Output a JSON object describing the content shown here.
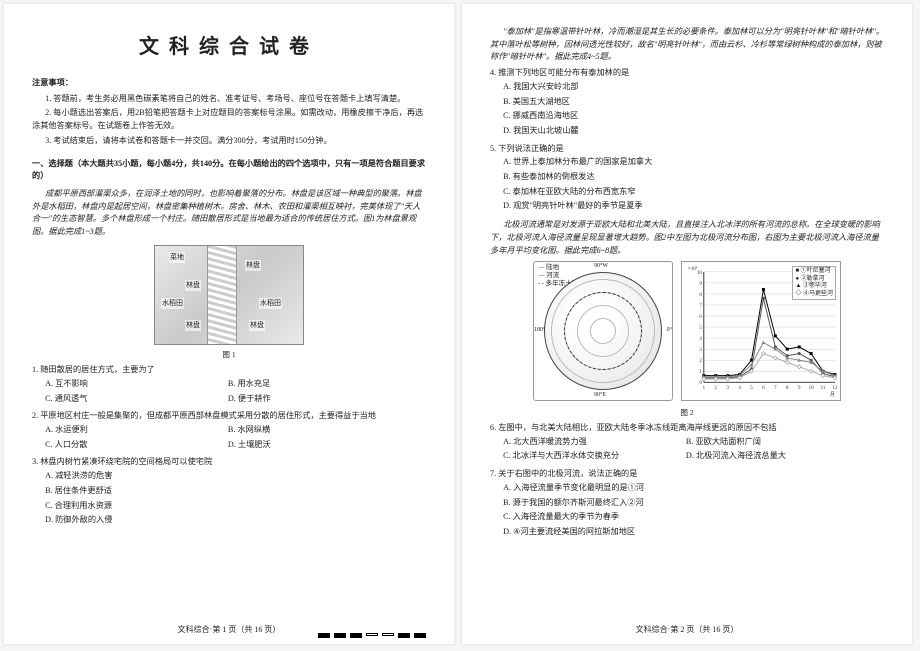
{
  "title": "文科综合试卷",
  "notice_head": "注意事项：",
  "notices": [
    "1. 答题前，考生务必用黑色碳素笔将自己的姓名、准考证号、考场号、座位号在答题卡上填写清楚。",
    "2. 每小题选出答案后，用2B铅笔把答题卡上对应题目的答案标号涂黑。如需改动，用橡皮擦干净后，再选涂其他答案标号。在试题卷上作答无效。",
    "3. 考试结束后，请将本试卷和答题卡一并交回。满分300分，考试用时150分钟。"
  ],
  "partA_head": "一、选择题（本大题共35小题，每小题4分，共140分。在每小题给出的四个选项中，只有一项是符合题目要求的）",
  "passage1": "成都平原西部灌渠众多，在润泽土地的同时，也影响着聚落的分布。林盘是该区域一种典型的聚落。林盘外是水稻田，林盘内是起居空间，林盘密集种植树木。房舍、林木、农田和灌渠相互映衬，完美体现了\"天人合一\"的生态智慧。多个林盘形成一个村庄。随田散居形式是当地最为适合的传统居住方式。图1为林盘景观图。据此完成1~3题。",
  "fig1_caption": "图 1",
  "fig1_labels": {
    "a": "菜地",
    "b": "林盘",
    "c": "林盘",
    "d": "水稻田",
    "e": "水稻田",
    "f": "林盘",
    "g": "林盘"
  },
  "q1": {
    "stem": "1. 随田散居的居住方式，主要为了",
    "A": "A. 互不影响",
    "B": "B. 用水充足",
    "C": "C. 通风透气",
    "D": "D. 便于耕作"
  },
  "q2": {
    "stem": "2. 平原地区村庄一般是集聚的，但成都平原西部林盘模式采用分散的居住形式，主要得益于当地",
    "A": "A. 水运便利",
    "B": "B. 水网纵横",
    "C": "C. 人口分散",
    "D": "D. 土壤肥沃"
  },
  "q3": {
    "stem": "3. 林盘内树竹紧凑环绕宅院的空间格局可以使宅院",
    "A": "A. 减轻洪涝的危害",
    "B": "B. 居住条件更舒适",
    "C": "C. 合理利用水资源",
    "D": "D. 防御外敌的入侵"
  },
  "footer1": "文科综合·第 1 页（共 16 页）",
  "passage2a": "\"泰加林\"是指寒温带针叶林，冷而潮湿是其生长的必要条件。泰加林可以分为\"明亮针叶林\"和\"暗针叶林\"。其中落叶松等树种，因林间透光性较好，故名\"明亮针叶林\"，而由云杉、冷杉等常绿树种构成的泰加林，则被称作\"暗针叶林\"。据此完成4~5题。",
  "q4": {
    "stem": "4. 推测下列地区可能分布有泰加林的是",
    "A": "A. 我国大兴安岭北部",
    "B": "B. 美国五大湖地区",
    "C": "C. 挪威西南沿海地区",
    "D": "D. 我国天山北坡山麓"
  },
  "q5": {
    "stem": "5. 下列说法正确的是",
    "A": "A. 世界上泰加林分布最广的国家是加拿大",
    "B": "B. 有些泰加林的倒根发达",
    "C": "C. 泰加林在亚欧大陆的分布西宽东窄",
    "D": "D. 观赏\"明亮针叶林\"最好的季节是夏季"
  },
  "passage3": "北极河流通常是对发源于亚欧大陆和北美大陆，且直接注入北冰洋的所有河流的总称。在全球变暖的影响下，北极河流入海径流量呈现显著增大趋势。图2中左图为北极河流分布图，右图为主要北极河流入海径流量多年月平均变化图。据此完成6~8题。",
  "fig2_caption": "图 2",
  "globe_labels": {
    "lon1": "90°W",
    "lon2": "180°",
    "lon3": "90°E",
    "lon4": "0°",
    "lat": "60°N"
  },
  "globe_legend": {
    "a": "— 陆地",
    "b": "— 河流",
    "c": "- - 多年冻土边界"
  },
  "chart": {
    "ylabel": "入海径流量 / (×10⁴ m³·s⁻¹)",
    "xlabel": "月",
    "xlim": [
      1,
      12
    ],
    "ylim": [
      0,
      10
    ],
    "ytick_step": 1,
    "grid_color": "#cccccc",
    "background": "#ffffff",
    "legend": [
      "①叶尼塞河",
      "②勒拿河",
      "③鄂毕河",
      "④马更些河"
    ],
    "series": [
      {
        "label": "①",
        "color": "#000000",
        "marker": "square",
        "values": [
          0.6,
          0.6,
          0.6,
          0.7,
          2.0,
          8.4,
          4.2,
          3.0,
          3.2,
          2.6,
          1.0,
          0.7
        ]
      },
      {
        "label": "②",
        "color": "#555555",
        "marker": "circle",
        "values": [
          0.4,
          0.4,
          0.4,
          0.5,
          1.2,
          7.6,
          3.2,
          2.4,
          2.6,
          2.0,
          0.8,
          0.5
        ]
      },
      {
        "label": "③",
        "color": "#888888",
        "marker": "triangle",
        "values": [
          0.5,
          0.5,
          0.5,
          0.6,
          1.6,
          3.6,
          3.0,
          2.2,
          2.0,
          1.8,
          1.0,
          0.6
        ]
      },
      {
        "label": "④",
        "color": "#aaaaaa",
        "marker": "diamond",
        "values": [
          0.3,
          0.3,
          0.3,
          0.4,
          1.0,
          2.6,
          2.2,
          1.8,
          1.4,
          1.0,
          0.6,
          0.4
        ]
      }
    ]
  },
  "q6": {
    "stem": "6. 左图中，与北美大陆相比，亚欧大陆冬季冰冻线距离海岸线更远的原因不包括",
    "A": "A. 北大西洋暖流势力强",
    "B": "B. 亚欧大陆面积广阔",
    "C": "C. 北冰洋与大西洋水体交换充分",
    "D": "D. 北极河流入海径流总量大"
  },
  "q7": {
    "stem": "7. 关于右图中的北极河流，说法正确的是",
    "A": "A. 入海径流量季节变化最明显的是①河",
    "B": "B. 源于我国的额尔齐斯河最终汇入②河",
    "C": "C. 入海径流量最大的季节为春季",
    "D": "D. ④河主要流经美国的阿拉斯加地区"
  },
  "footer2": "文科综合·第 2 页（共 16 页）"
}
